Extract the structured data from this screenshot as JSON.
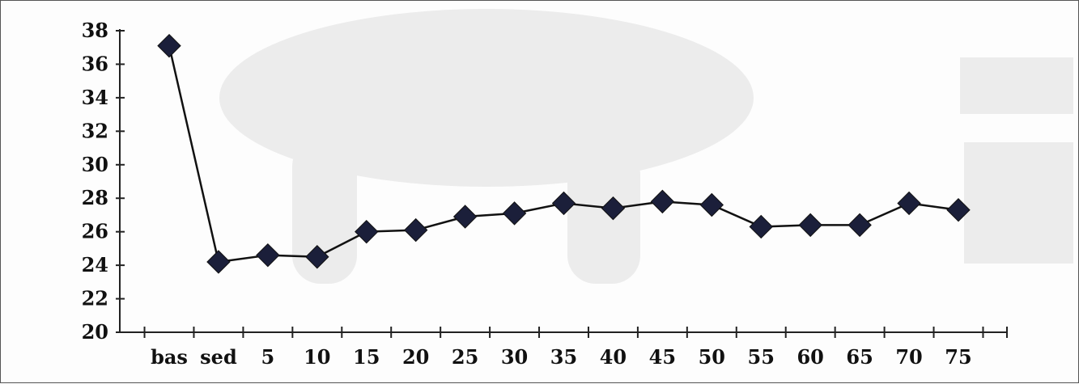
{
  "chart_data": {
    "type": "line",
    "title": "",
    "xlabel": "",
    "ylabel": "",
    "categories": [
      "bas",
      "sed",
      "5",
      "10",
      "15",
      "20",
      "25",
      "30",
      "35",
      "40",
      "45",
      "50",
      "55",
      "60",
      "65",
      "70",
      "75"
    ],
    "series": [
      {
        "values": [
          37.1,
          24.2,
          24.6,
          24.5,
          26.0,
          26.1,
          26.9,
          27.1,
          27.7,
          27.4,
          27.8,
          27.6,
          26.3,
          26.4,
          26.4,
          27.7,
          27.3
        ]
      }
    ],
    "ylim": [
      20,
      38
    ],
    "yticks": [
      20,
      22,
      24,
      26,
      28,
      30,
      32,
      34,
      36,
      38
    ],
    "grid": false,
    "colors": {
      "line": "#111111",
      "marker": "#1b1f3a",
      "axis": "#222222"
    }
  }
}
